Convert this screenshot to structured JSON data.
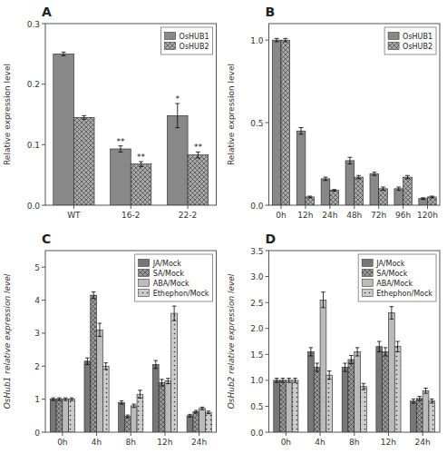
{
  "chart_data": [
    {
      "type": "bar",
      "title": "A",
      "categories": [
        "WT",
        "16-2",
        "22-2"
      ],
      "series": [
        {
          "name": "OsHUB1",
          "color": "#888888",
          "values": [
            0.25,
            0.093,
            0.148
          ],
          "errors": [
            0.003,
            0.005,
            0.02
          ],
          "annotations": [
            null,
            "**",
            "*"
          ]
        },
        {
          "name": "OsHUB2",
          "color": "#aaaaaa",
          "values": [
            0.145,
            0.068,
            0.083
          ],
          "errors": [
            0.003,
            0.004,
            0.005
          ],
          "annotations": [
            null,
            "**",
            "**"
          ]
        }
      ],
      "ylabel": "Relative expression level",
      "ylim": [
        0,
        0.3
      ],
      "yticks": [
        {
          "value": 0.0,
          "label": "0.0"
        },
        0.1,
        0.2,
        0.3
      ],
      "grid": false,
      "legend": "upper right"
    },
    {
      "type": "bar",
      "title": "B",
      "categories": [
        "0h",
        "12h",
        "24h",
        "48h",
        "72h",
        "96h",
        "120h"
      ],
      "series": [
        {
          "name": "OsHUB1",
          "color": "#888888",
          "values": [
            1.0,
            0.45,
            0.16,
            0.27,
            0.19,
            0.1,
            0.04
          ],
          "errors": [
            0.01,
            0.02,
            0.01,
            0.02,
            0.01,
            0.01,
            0.005
          ]
        },
        {
          "name": "OsHUB2",
          "color": "#aaaaaa",
          "values": [
            1.0,
            0.05,
            0.09,
            0.17,
            0.1,
            0.17,
            0.05
          ],
          "errors": [
            0.01,
            0.005,
            0.005,
            0.01,
            0.01,
            0.01,
            0.005
          ]
        }
      ],
      "ylabel": "Relative expression level",
      "ylim": [
        0,
        1.1
      ],
      "yticks": [
        {
          "value": 0.0,
          "label": "0.0"
        },
        0.5,
        {
          "value": 1.0,
          "label": "1.0"
        }
      ],
      "grid": false,
      "legend": "upper right"
    },
    {
      "type": "bar",
      "title": "C",
      "categories": [
        "0h",
        "4h",
        "8h",
        "12h",
        "24h"
      ],
      "series": [
        {
          "name": "JA/Mock",
          "color": "#777777",
          "values": [
            1.0,
            2.15,
            0.9,
            2.05,
            0.5
          ],
          "errors": [
            0.04,
            0.1,
            0.05,
            0.12,
            0.04
          ]
        },
        {
          "name": "SA/Mock",
          "color": "#999999",
          "values": [
            1.0,
            4.15,
            0.48,
            1.5,
            0.62
          ],
          "errors": [
            0.04,
            0.1,
            0.04,
            0.1,
            0.04
          ]
        },
        {
          "name": "ABA/Mock",
          "color": "#bbbbbb",
          "values": [
            1.0,
            3.1,
            0.8,
            1.55,
            0.72
          ],
          "errors": [
            0.04,
            0.2,
            0.05,
            0.08,
            0.04
          ]
        },
        {
          "name": "Ethephon/Mock",
          "color": "#cccccc",
          "values": [
            1.0,
            2.0,
            1.15,
            3.6,
            0.6
          ],
          "errors": [
            0.04,
            0.1,
            0.12,
            0.22,
            0.04
          ]
        }
      ],
      "ylabel": "OsHub1 relative expression level",
      "ylim": [
        0,
        5.5
      ],
      "yticks": [
        0,
        1,
        2,
        3,
        4,
        5
      ],
      "grid": false,
      "legend": "upper right"
    },
    {
      "type": "bar",
      "title": "D",
      "categories": [
        "0h",
        "4h",
        "8h",
        "12h",
        "24h"
      ],
      "series": [
        {
          "name": "JA/Mock",
          "color": "#777777",
          "values": [
            1.0,
            1.55,
            1.25,
            1.65,
            0.6
          ],
          "errors": [
            0.04,
            0.08,
            0.08,
            0.1,
            0.04
          ]
        },
        {
          "name": "SA/Mock",
          "color": "#999999",
          "values": [
            1.0,
            1.25,
            1.4,
            1.55,
            0.65
          ],
          "errors": [
            0.04,
            0.08,
            0.08,
            0.08,
            0.04
          ]
        },
        {
          "name": "ABA/Mock",
          "color": "#bbbbbb",
          "values": [
            1.0,
            2.55,
            1.55,
            2.3,
            0.8
          ],
          "errors": [
            0.04,
            0.15,
            0.08,
            0.12,
            0.05
          ]
        },
        {
          "name": "Ethephon/Mock",
          "color": "#cccccc",
          "values": [
            1.0,
            1.1,
            0.88,
            1.65,
            0.6
          ],
          "errors": [
            0.04,
            0.08,
            0.06,
            0.1,
            0.04
          ]
        }
      ],
      "ylabel": "OsHub2 relative expression level",
      "ylim": [
        0,
        3.5
      ],
      "yticks": [
        {
          "value": 0.0,
          "label": "0.0"
        },
        0.5,
        {
          "value": 1.0,
          "label": "1.0"
        },
        1.5,
        {
          "value": 2.0,
          "label": "2.0"
        },
        2.5,
        {
          "value": 3.0,
          "label": "3.0"
        },
        3.5
      ],
      "grid": false,
      "legend": "upper right"
    }
  ]
}
